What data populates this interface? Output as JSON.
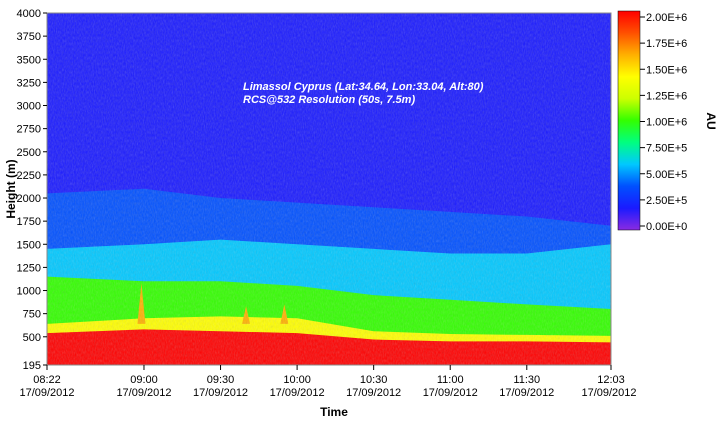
{
  "chart_data": {
    "type": "heatmap",
    "title": "",
    "annotations": [
      "Limassol Cyprus (Lat:34.64, Lon:33.04, Alt:80)",
      "RCS@532 Resolution (50s, 7.5m)"
    ],
    "xlabel": "Time",
    "ylabel": "Height (m)",
    "colorbar_label": "AU",
    "x_ticks": [
      {
        "time": "08:22",
        "date": "17/09/2012"
      },
      {
        "time": "09:00",
        "date": "17/09/2012"
      },
      {
        "time": "09:30",
        "date": "17/09/2012"
      },
      {
        "time": "10:00",
        "date": "17/09/2012"
      },
      {
        "time": "10:30",
        "date": "17/09/2012"
      },
      {
        "time": "11:00",
        "date": "17/09/2012"
      },
      {
        "time": "11:30",
        "date": "17/09/2012"
      },
      {
        "time": "12:03",
        "date": "17/09/2012"
      }
    ],
    "xlim": [
      "08:22",
      "12:03"
    ],
    "y_ticks": [
      "4000",
      "3750",
      "3500",
      "3250",
      "3000",
      "2750",
      "2500",
      "2250",
      "2000",
      "1750",
      "1500",
      "1250",
      "1000",
      "750",
      "500",
      "195"
    ],
    "ylim": [
      195,
      4000
    ],
    "colorbar_ticks": [
      "2.00E+6",
      "1.75E+6",
      "1.50E+6",
      "1.25E+6",
      "1.00E+6",
      "7.50E+5",
      "5.00E+5",
      "2.50E+5",
      "0.00E+0"
    ],
    "colorbar_range": [
      0,
      2000000
    ],
    "colorscale": [
      "#8a2be2",
      "#1a1aff",
      "#0050ff",
      "#00c8ff",
      "#00ff80",
      "#33ff00",
      "#ccff00",
      "#ffff00",
      "#ffb000",
      "#ff5000",
      "#ff0000"
    ],
    "layer_profile": [
      {
        "time": "08:22",
        "red_top": 540,
        "yellow_top": 640,
        "green_top": 1150,
        "cyan_top": 1450,
        "blue_top": 2050
      },
      {
        "time": "09:00",
        "red_top": 580,
        "yellow_top": 700,
        "green_top": 1100,
        "cyan_top": 1500,
        "blue_top": 2100
      },
      {
        "time": "09:30",
        "red_top": 560,
        "yellow_top": 720,
        "green_top": 1100,
        "cyan_top": 1550,
        "blue_top": 2000
      },
      {
        "time": "10:00",
        "red_top": 540,
        "yellow_top": 700,
        "green_top": 1050,
        "cyan_top": 1500,
        "blue_top": 1950
      },
      {
        "time": "10:30",
        "red_top": 470,
        "yellow_top": 560,
        "green_top": 950,
        "cyan_top": 1450,
        "blue_top": 1900
      },
      {
        "time": "11:00",
        "red_top": 450,
        "yellow_top": 530,
        "green_top": 900,
        "cyan_top": 1400,
        "blue_top": 1850
      },
      {
        "time": "11:30",
        "red_top": 450,
        "yellow_top": 520,
        "green_top": 850,
        "cyan_top": 1400,
        "blue_top": 1800
      },
      {
        "time": "12:03",
        "red_top": 440,
        "yellow_top": 510,
        "green_top": 800,
        "cyan_top": 1500,
        "blue_top": 1700
      }
    ],
    "plumes": [
      {
        "time": "08:59",
        "top": 1080
      },
      {
        "time": "09:40",
        "top": 830
      },
      {
        "time": "09:55",
        "top": 850
      }
    ]
  }
}
